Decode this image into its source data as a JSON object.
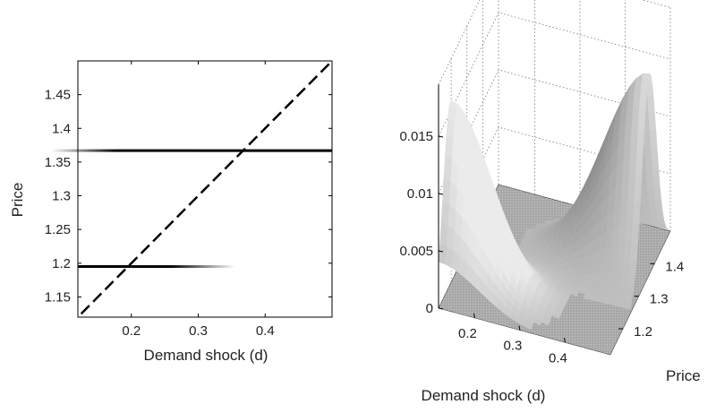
{
  "chart_data": [
    {
      "type": "line",
      "xlabel": "Demand shock (d)",
      "ylabel": "Price",
      "xlim": [
        0.12,
        0.5
      ],
      "ylim": [
        1.12,
        1.5
      ],
      "grid": false,
      "xticks": [
        "0.2",
        "0.3",
        "0.4"
      ],
      "yticks": [
        "1.15",
        "1.2",
        "1.25",
        "1.3",
        "1.35",
        "1.4",
        "1.45"
      ],
      "xtick_values": [
        0.2,
        0.3,
        0.4
      ],
      "ytick_values": [
        1.15,
        1.2,
        1.25,
        1.3,
        1.35,
        1.4,
        1.45
      ],
      "series": [
        {
          "style": "dashed",
          "color": "#000000",
          "x": [
            0.125,
            0.5
          ],
          "y": [
            1.125,
            1.5
          ]
        },
        {
          "style": "solid-fade-left",
          "color": "#000000",
          "x": [
            0.12,
            0.5
          ],
          "y": [
            1.367,
            1.367
          ],
          "fade_from": 0.12,
          "fade_to": 0.3
        },
        {
          "style": "solid-fade-right",
          "color": "#000000",
          "x": [
            0.12,
            0.5
          ],
          "y": [
            1.195,
            1.195
          ],
          "fade_from": 0.2,
          "fade_to": 0.34
        }
      ]
    },
    {
      "type": "surface",
      "xlabel": "Demand shock (d)",
      "ylabel": "Price",
      "zlabel": "",
      "xlim": [
        0.12,
        0.5
      ],
      "ylim": [
        1.12,
        1.5
      ],
      "zlim": [
        0,
        0.0195
      ],
      "grid": true,
      "xticks": [
        "0.2",
        "0.3",
        "0.4"
      ],
      "yticks": [
        "1.2",
        "1.3",
        "1.4"
      ],
      "zticks": [
        "0",
        "0.005",
        "0.01",
        "0.015"
      ],
      "xtick_values": [
        0.2,
        0.3,
        0.4
      ],
      "ytick_values": [
        1.2,
        1.3,
        1.4
      ],
      "ztick_values": [
        0,
        0.005,
        0.01,
        0.015
      ],
      "colormap": "gray",
      "ridges": [
        {
          "price": 1.195,
          "center_d": 0.12,
          "spread_d": 0.09,
          "peak": 0.016
        },
        {
          "price": 1.367,
          "center_d": 0.5,
          "spread_d": 0.1,
          "peak": 0.0175
        }
      ]
    }
  ]
}
